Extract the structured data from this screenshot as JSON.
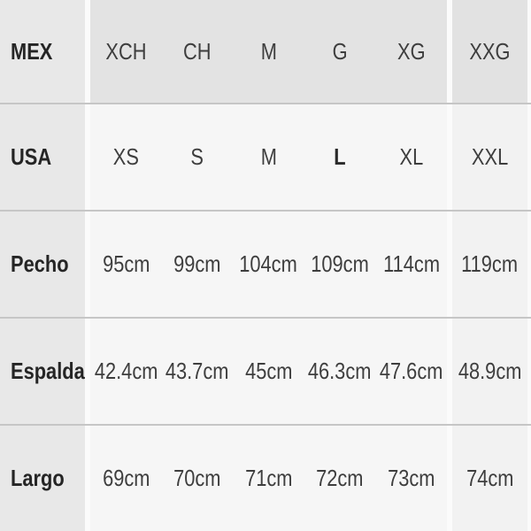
{
  "chart_data": {
    "type": "table",
    "description": "Garment size conversion and measurement chart",
    "row_labels": [
      "MEX",
      "USA",
      "Pecho",
      "Espalda",
      "Largo"
    ],
    "grid": [
      [
        "MEX",
        "XCH",
        "CH",
        "M",
        "G",
        "XG",
        "XXG"
      ],
      [
        "USA",
        "XS",
        "S",
        "M",
        "L",
        "XL",
        "XXL"
      ],
      [
        "Pecho",
        "95cm",
        "99cm",
        "104cm",
        "109cm",
        "114cm",
        "119cm"
      ],
      [
        "Espalda",
        "42.4cm",
        "43.7cm",
        "45cm",
        "46.3cm",
        "47.6cm",
        "48.9cm"
      ],
      [
        "Largo",
        "69cm",
        "70cm",
        "71cm",
        "72cm",
        "73cm",
        "74cm"
      ]
    ],
    "emphasis": "Row labels and the USA value 'L' are bold",
    "layout": {
      "header_row": "MEX size row (gray background)",
      "label_column": "first column (gray background)",
      "separators": "white vertical gaps after label column and before XXG column; thin gray horizontal lines between rows",
      "grid_lines": "horizontal only"
    }
  },
  "colors": {
    "label_column_bg": "#e8e8e8",
    "header_row_bg": "#e3e3e3",
    "data_cell_bg": "#f6f6f6",
    "last_column_bg": "#f2f2f2",
    "gap_stripe": "#fbfbfb",
    "row_separator": "#c6c6c6",
    "label_text": "#252525",
    "data_text": "#3e3e3e"
  }
}
